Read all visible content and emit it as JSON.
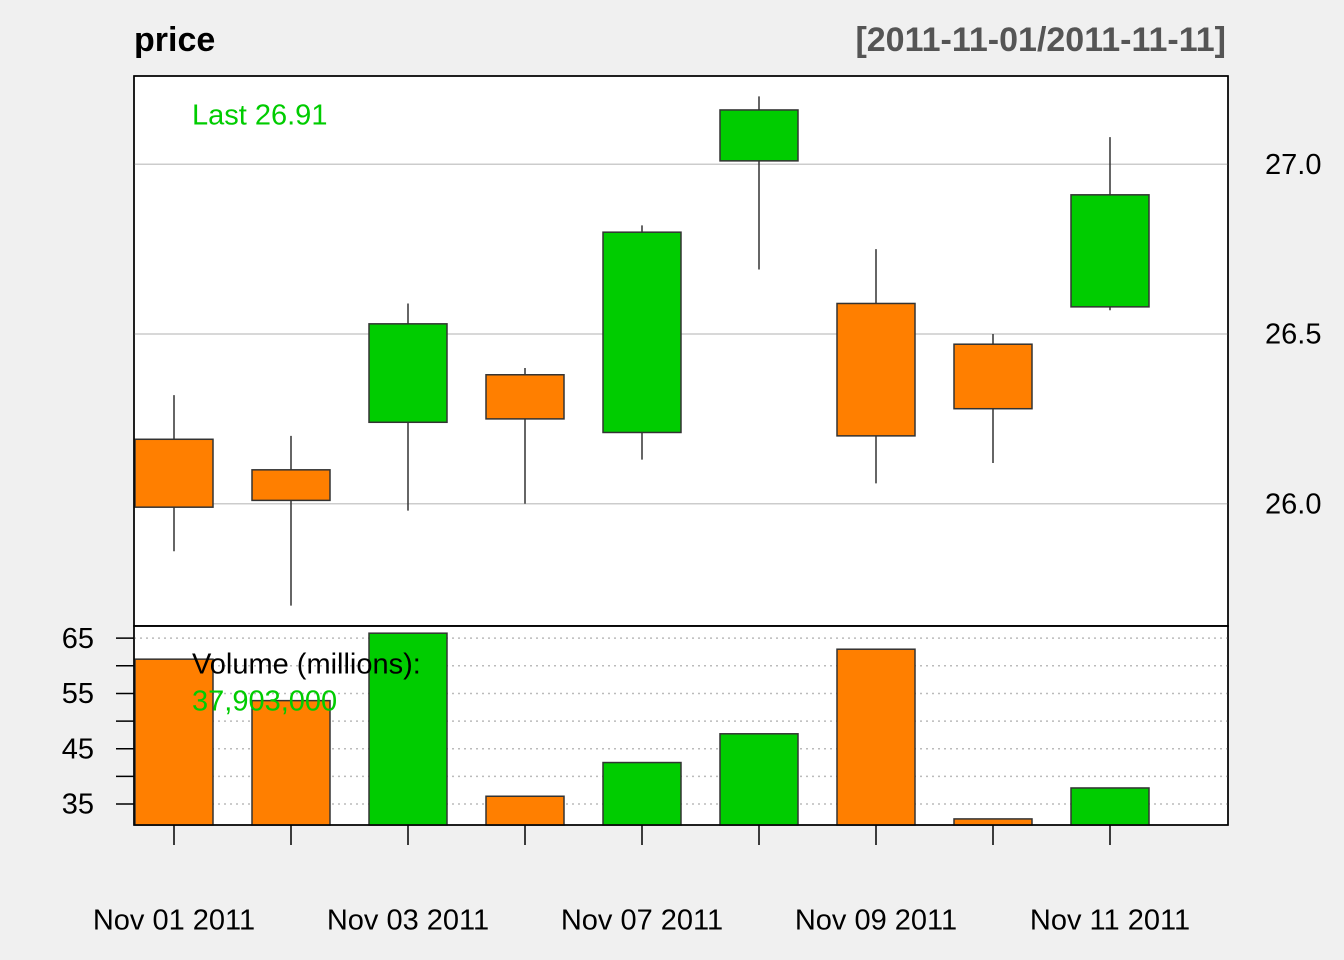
{
  "chart_data": [
    {
      "type": "candlestick",
      "title": "price",
      "subtitle": "[2011-11-01/2011-11-11]",
      "annotation": "Last 26.91",
      "open": [
        26.19,
        26.1,
        26.24,
        26.38,
        26.21,
        27.01,
        26.59,
        26.47,
        26.58
      ],
      "high": [
        26.32,
        26.2,
        26.59,
        26.4,
        26.82,
        27.2,
        26.75,
        26.5,
        27.08
      ],
      "low": [
        25.86,
        25.7,
        25.98,
        26.0,
        26.13,
        26.69,
        26.06,
        26.12,
        26.57
      ],
      "close": [
        25.99,
        26.01,
        26.53,
        26.25,
        26.8,
        27.16,
        26.2,
        26.28,
        26.91
      ],
      "up_color": "#00cc00",
      "down_color": "#ff7f00",
      "ylim": [
        25.64,
        27.26
      ],
      "yticks": [
        {
          "value": 26,
          "label": "26.0"
        },
        26.5,
        {
          "value": 27,
          "label": "27.0"
        }
      ],
      "grid": true
    },
    {
      "type": "bar",
      "title": "Volume (millions):",
      "annotation": "37,903,000",
      "categories": [
        "Nov 01 2011",
        null,
        "Nov 03 2011",
        null,
        "Nov 07 2011",
        null,
        "Nov 09 2011",
        null,
        "Nov 11 2011"
      ],
      "values": [
        61.2,
        53.7,
        65.9,
        36.4,
        42.5,
        47.7,
        63.0,
        32.3,
        37.9
      ],
      "colors": [
        "#ff7f00",
        "#ff7f00",
        "#00cc00",
        "#ff7f00",
        "#00cc00",
        "#00cc00",
        "#ff7f00",
        "#ff7f00",
        "#00cc00"
      ],
      "ylim": [
        31.2,
        67.2
      ],
      "yticks": [
        35,
        45,
        55,
        65
      ],
      "yminorticks": [
        40,
        50,
        60
      ],
      "grid": true
    }
  ]
}
